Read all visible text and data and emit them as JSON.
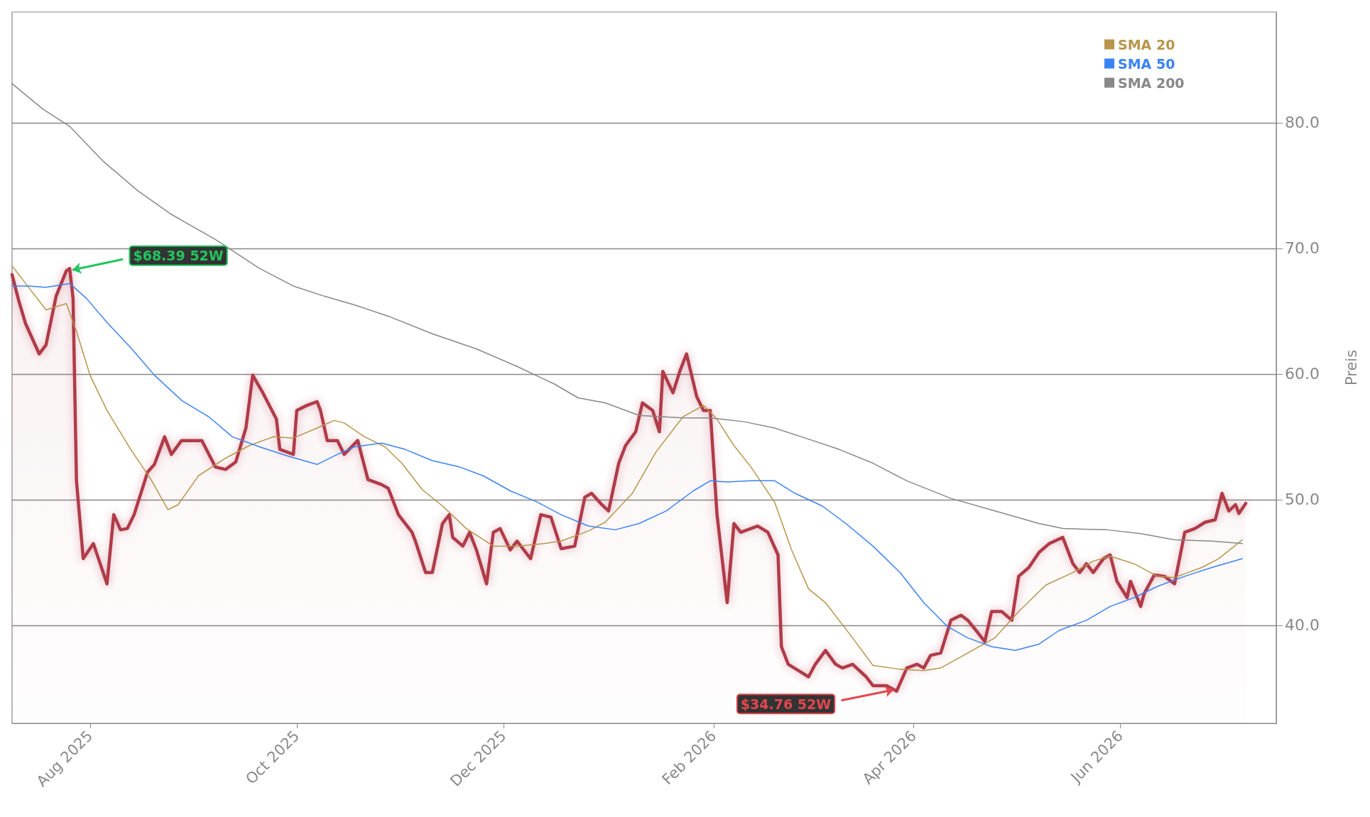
{
  "chart_data": {
    "type": "line",
    "ylabel": "Preis",
    "xlim": [
      "2025-07-09",
      "2026-07-17"
    ],
    "ylim": [
      32.2,
      88.8
    ],
    "xticks": [
      {
        "value": "2025-08-01",
        "label": "Aug 2025"
      },
      {
        "value": "2025-10-01",
        "label": "Oct 2025"
      },
      {
        "value": "2025-12-01",
        "label": "Dec 2025"
      },
      {
        "value": "2026-02-01",
        "label": "Feb 2026"
      },
      {
        "value": "2026-04-01",
        "label": "Apr 2026"
      },
      {
        "value": "2026-06-01",
        "label": "Jun 2026"
      }
    ],
    "yticks": [
      {
        "value": 40,
        "label": "40.0"
      },
      {
        "value": 50,
        "label": "50.0"
      },
      {
        "value": 60,
        "label": "60.0"
      },
      {
        "value": 70,
        "label": "70.0"
      },
      {
        "value": 80,
        "label": "80.0"
      }
    ],
    "grid": "y",
    "legend": "top right",
    "marker": "none",
    "annotations": [
      {
        "text": "$68.39 52W",
        "x": "2025-07-26",
        "y": 68.39
      },
      {
        "text": "$34.76 52W",
        "x": "2026-03-27",
        "y": 34.76
      }
    ],
    "series": [
      {
        "type": "area",
        "color": "#b03a48",
        "x": [
          "2025-07-09",
          "2025-07-11",
          "2025-07-13",
          "2025-07-17",
          "2025-07-19",
          "2025-07-22",
          "2025-07-25",
          "2025-07-26",
          "2025-07-27",
          "2025-07-28",
          "2025-07-30",
          "2025-08-02",
          "2025-08-06",
          "2025-08-08",
          "2025-08-10",
          "2025-08-12",
          "2025-08-14",
          "2025-08-18",
          "2025-08-20",
          "2025-08-23",
          "2025-08-25",
          "2025-08-28",
          "2025-09-01",
          "2025-09-03",
          "2025-09-07",
          "2025-09-10",
          "2025-09-13",
          "2025-09-16",
          "2025-09-18",
          "2025-09-21",
          "2025-09-25",
          "2025-09-26",
          "2025-09-30",
          "2025-10-01",
          "2025-10-04",
          "2025-10-07",
          "2025-10-08",
          "2025-10-10",
          "2025-10-13",
          "2025-10-15",
          "2025-10-19",
          "2025-10-22",
          "2025-10-26",
          "2025-10-28",
          "2025-10-31",
          "2025-11-04",
          "2025-11-05",
          "2025-11-08",
          "2025-11-10",
          "2025-11-13",
          "2025-11-15",
          "2025-11-16",
          "2025-11-19",
          "2025-11-21",
          "2025-11-23",
          "2025-11-26",
          "2025-11-28",
          "2025-11-30",
          "2025-12-03",
          "2025-12-05",
          "2025-12-09",
          "2025-12-12",
          "2025-12-15",
          "2025-12-18",
          "2025-12-22",
          "2025-12-25",
          "2025-12-27",
          "2025-12-30",
          "2026-01-01",
          "2026-01-04",
          "2026-01-06",
          "2026-01-09",
          "2026-01-11",
          "2026-01-14",
          "2026-01-16",
          "2026-01-17",
          "2026-01-20",
          "2026-01-22",
          "2026-01-24",
          "2026-01-27",
          "2026-01-29",
          "2026-01-31",
          "2026-02-02",
          "2026-02-05",
          "2026-02-07",
          "2026-02-09",
          "2026-02-12",
          "2026-02-14",
          "2026-02-17",
          "2026-02-20",
          "2026-02-21",
          "2026-02-23",
          "2026-02-26",
          "2026-03-01",
          "2026-03-03",
          "2026-03-06",
          "2026-03-09",
          "2026-03-11",
          "2026-03-14",
          "2026-03-18",
          "2026-03-20",
          "2026-03-24",
          "2026-03-27",
          "2026-03-30",
          "2026-04-02",
          "2026-04-04",
          "2026-04-06",
          "2026-04-09",
          "2026-04-12",
          "2026-04-15",
          "2026-04-17",
          "2026-04-20",
          "2026-04-22",
          "2026-04-24",
          "2026-04-27",
          "2026-04-30",
          "2026-05-02",
          "2026-05-05",
          "2026-05-08",
          "2026-05-11",
          "2026-05-15",
          "2026-05-18",
          "2026-05-20",
          "2026-05-22",
          "2026-05-24",
          "2026-05-27",
          "2026-05-29",
          "2026-05-31",
          "2026-06-03",
          "2026-06-04",
          "2026-06-07",
          "2026-06-08",
          "2026-06-11",
          "2026-06-14",
          "2026-06-17",
          "2026-06-20",
          "2026-06-23",
          "2026-06-26",
          "2026-06-29",
          "2026-07-01",
          "2026-07-03",
          "2026-07-05",
          "2026-07-06",
          "2026-07-08"
        ],
        "values": [
          67.9,
          65.8,
          64,
          61.6,
          62.3,
          66.2,
          68.2,
          68.39,
          66,
          51.5,
          45.3,
          46.5,
          43.3,
          48.8,
          47.6,
          47.7,
          48.8,
          52.2,
          52.8,
          55,
          53.6,
          54.7,
          54.7,
          54.7,
          52.6,
          52.4,
          53,
          55.7,
          59.9,
          58.5,
          56.4,
          54,
          53.6,
          57.1,
          57.5,
          57.8,
          57.1,
          54.7,
          54.7,
          53.6,
          54.7,
          51.6,
          51.2,
          50.9,
          48.8,
          47.4,
          46.7,
          44.2,
          44.2,
          48.1,
          48.8,
          47,
          46.3,
          47.4,
          46,
          43.3,
          47.4,
          47.7,
          46,
          46.7,
          45.3,
          48.8,
          48.6,
          46.1,
          46.3,
          50.2,
          50.5,
          49.6,
          49.1,
          52.9,
          54.3,
          55.4,
          57.7,
          57.1,
          55.4,
          60.2,
          58.5,
          60.2,
          61.6,
          58.2,
          57.1,
          57.1,
          48.8,
          41.8,
          48.1,
          47.4,
          47.7,
          47.9,
          47.4,
          45.6,
          38.3,
          36.9,
          36.4,
          35.9,
          36.9,
          38,
          36.9,
          36.6,
          36.9,
          35.9,
          35.2,
          35.2,
          34.76,
          36.6,
          36.9,
          36.6,
          37.6,
          37.8,
          40.4,
          40.8,
          40.4,
          39.4,
          38.7,
          41.1,
          41.1,
          40.4,
          43.9,
          44.6,
          45.8,
          46.5,
          47,
          44.9,
          44.2,
          44.9,
          44.2,
          45.3,
          45.6,
          43.5,
          42.2,
          43.5,
          41.5,
          42.5,
          44,
          43.9,
          43.3,
          47.4,
          47.7,
          48.2,
          48.4,
          50.5,
          49.1,
          49.6,
          48.9,
          49.7
        ]
      },
      {
        "name": "SMA 20",
        "color": "#b8954a",
        "x": [
          "2025-07-09",
          "2025-07-13",
          "2025-07-19",
          "2025-07-25",
          "2025-07-28",
          "2025-08-01",
          "2025-08-06",
          "2025-08-13",
          "2025-08-19",
          "2025-08-24",
          "2025-08-27",
          "2025-09-02",
          "2025-09-10",
          "2025-09-17",
          "2025-09-24",
          "2025-09-30",
          "2025-10-07",
          "2025-10-12",
          "2025-10-15",
          "2025-10-21",
          "2025-10-27",
          "2025-11-01",
          "2025-11-07",
          "2025-11-13",
          "2025-11-20",
          "2025-11-28",
          "2025-12-05",
          "2025-12-13",
          "2025-12-18",
          "2025-12-26",
          "2025-12-31",
          "2026-01-08",
          "2026-01-15",
          "2026-01-23",
          "2026-01-29",
          "2026-02-02",
          "2026-02-07",
          "2026-02-12",
          "2026-02-19",
          "2026-02-24",
          "2026-03-01",
          "2026-03-06",
          "2026-03-14",
          "2026-03-20",
          "2026-03-28",
          "2026-04-04",
          "2026-04-09",
          "2026-04-17",
          "2026-04-25",
          "2026-05-02",
          "2026-05-10",
          "2026-05-18",
          "2026-05-24",
          "2026-05-29",
          "2026-06-05",
          "2026-06-12",
          "2026-06-17",
          "2026-06-25",
          "2026-06-30",
          "2026-07-07"
        ],
        "values": [
          68.6,
          67.2,
          65.1,
          65.6,
          63.4,
          59.9,
          57.1,
          54,
          51.6,
          49.2,
          49.6,
          51.9,
          53.3,
          54.3,
          55,
          54.9,
          55.7,
          56.3,
          56.1,
          55,
          54.2,
          52.9,
          50.8,
          49.5,
          47.7,
          46.3,
          46.3,
          46.5,
          46.7,
          47.5,
          48.2,
          50.5,
          53.8,
          56.6,
          57.5,
          56.4,
          54.3,
          52.6,
          49.8,
          46,
          42.9,
          41.8,
          39,
          36.8,
          36.5,
          36.4,
          36.6,
          37.8,
          39,
          41.1,
          43.2,
          44.2,
          45.1,
          45.5,
          44.9,
          43.9,
          43.8,
          44.6,
          45.3,
          46.8
        ]
      },
      {
        "name": "SMA 50",
        "color": "#3b82f6",
        "x": [
          "2025-07-09",
          "2025-07-14",
          "2025-07-19",
          "2025-07-26",
          "2025-07-31",
          "2025-08-06",
          "2025-08-13",
          "2025-08-20",
          "2025-08-28",
          "2025-09-05",
          "2025-09-12",
          "2025-09-20",
          "2025-09-28",
          "2025-10-07",
          "2025-10-13",
          "2025-10-18",
          "2025-10-26",
          "2025-11-02",
          "2025-11-10",
          "2025-11-18",
          "2025-11-25",
          "2025-12-03",
          "2025-12-11",
          "2025-12-18",
          "2025-12-26",
          "2026-01-03",
          "2026-01-10",
          "2026-01-18",
          "2026-01-26",
          "2026-01-31",
          "2026-02-05",
          "2026-02-12",
          "2026-02-19",
          "2026-02-25",
          "2026-03-05",
          "2026-03-12",
          "2026-03-20",
          "2026-03-28",
          "2026-04-04",
          "2026-04-11",
          "2026-04-17",
          "2026-04-24",
          "2026-05-01",
          "2026-05-08",
          "2026-05-14",
          "2026-05-22",
          "2026-05-29",
          "2026-06-05",
          "2026-06-12",
          "2026-06-20",
          "2026-06-28",
          "2026-07-07"
        ],
        "values": [
          67,
          67,
          66.9,
          67.2,
          66,
          64.1,
          62.1,
          59.9,
          57.9,
          56.6,
          55,
          54.2,
          53.5,
          52.8,
          53.6,
          54.2,
          54.5,
          54,
          53.1,
          52.6,
          51.9,
          50.7,
          49.8,
          48.8,
          47.9,
          47.6,
          48.1,
          49.1,
          50.7,
          51.5,
          51.4,
          51.5,
          51.5,
          50.5,
          49.5,
          48.1,
          46.3,
          44.2,
          41.8,
          39.9,
          39,
          38.3,
          38,
          38.5,
          39.6,
          40.4,
          41.5,
          42.2,
          43.1,
          43.9,
          44.6,
          45.3
        ]
      },
      {
        "name": "SMA 200",
        "color": "#888888",
        "x": [
          "2025-07-09",
          "2025-07-18",
          "2025-07-26",
          "2025-08-05",
          "2025-08-15",
          "2025-08-25",
          "2025-09-07",
          "2025-09-20",
          "2025-09-30",
          "2025-10-09",
          "2025-10-18",
          "2025-10-28",
          "2025-11-10",
          "2025-11-23",
          "2025-12-05",
          "2025-12-16",
          "2025-12-23",
          "2025-12-31",
          "2026-01-10",
          "2026-01-23",
          "2026-01-31",
          "2026-02-10",
          "2026-02-19",
          "2026-02-28",
          "2026-03-10",
          "2026-03-20",
          "2026-03-30",
          "2026-04-12",
          "2026-04-25",
          "2026-05-08",
          "2026-05-15",
          "2026-05-28",
          "2026-06-07",
          "2026-06-17",
          "2026-06-28",
          "2026-07-07"
        ],
        "values": [
          83.1,
          81.1,
          79.7,
          76.9,
          74.6,
          72.7,
          70.7,
          68.4,
          67,
          66.2,
          65.5,
          64.6,
          63.2,
          62,
          60.6,
          59.2,
          58.1,
          57.7,
          56.7,
          56.5,
          56.5,
          56.2,
          55.7,
          54.9,
          54,
          52.9,
          51.5,
          50.1,
          49.1,
          48.1,
          47.7,
          47.6,
          47.3,
          46.8,
          46.7,
          46.5
        ]
      }
    ]
  }
}
